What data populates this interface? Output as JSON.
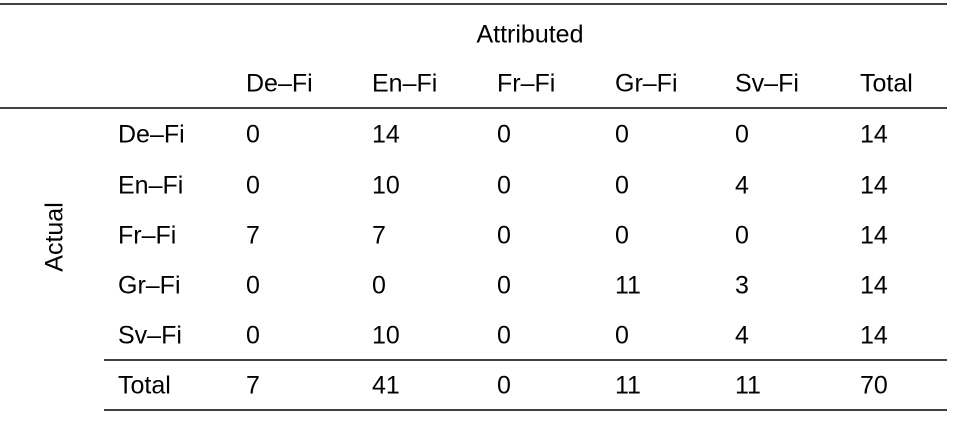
{
  "table": {
    "column_group": "Attributed",
    "row_group": "Actual",
    "columns": [
      "De–Fi",
      "En–Fi",
      "Fr–Fi",
      "Gr–Fi",
      "Sv–Fi",
      "Total"
    ],
    "rows": [
      {
        "label": "De–Fi",
        "cells": [
          0,
          14,
          0,
          0,
          0,
          14
        ]
      },
      {
        "label": "En–Fi",
        "cells": [
          0,
          10,
          0,
          0,
          4,
          14
        ]
      },
      {
        "label": "Fr–Fi",
        "cells": [
          7,
          7,
          0,
          0,
          0,
          14
        ]
      },
      {
        "label": "Gr–Fi",
        "cells": [
          0,
          0,
          0,
          11,
          3,
          14
        ]
      },
      {
        "label": "Sv–Fi",
        "cells": [
          0,
          10,
          0,
          0,
          4,
          14
        ]
      }
    ],
    "total": {
      "label": "Total",
      "cells": [
        7,
        41,
        0,
        11,
        11,
        70
      ]
    }
  }
}
